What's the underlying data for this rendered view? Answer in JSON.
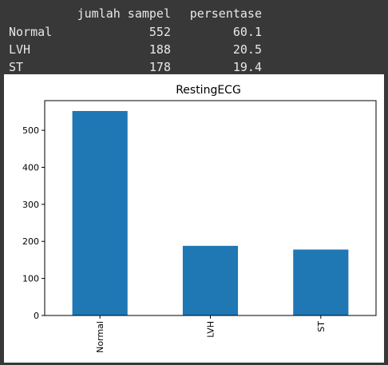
{
  "table": {
    "columns": [
      "jumlah sampel",
      "persentase"
    ],
    "rows": [
      {
        "index": "Normal",
        "values": [
          "552",
          "60.1"
        ]
      },
      {
        "index": "LVH",
        "values": [
          "188",
          "20.5"
        ]
      },
      {
        "index": "ST",
        "values": [
          "178",
          "19.4"
        ]
      }
    ]
  },
  "chart_data": {
    "type": "bar",
    "title": "RestingECG",
    "categories": [
      "Normal",
      "LVH",
      "ST"
    ],
    "values": [
      552,
      188,
      178
    ],
    "ylim": [
      0,
      580
    ],
    "yticks": [
      0,
      100,
      200,
      300,
      400,
      500
    ],
    "xlabel": "",
    "ylabel": "",
    "grid": false,
    "bar_color": "#1f77b4"
  }
}
